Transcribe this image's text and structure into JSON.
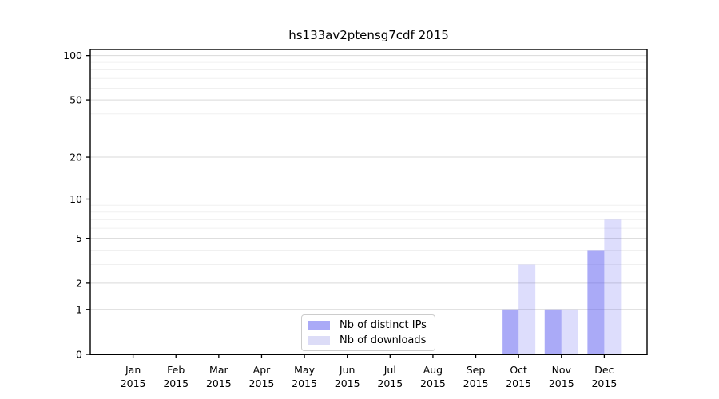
{
  "chart_data": {
    "type": "bar",
    "title": "hs133av2ptensg7cdf 2015",
    "scale": "log1p",
    "categories": [
      "Jan",
      "Feb",
      "Mar",
      "Apr",
      "May",
      "Jun",
      "Jul",
      "Aug",
      "Sep",
      "Oct",
      "Nov",
      "Dec"
    ],
    "x_tick_year": "2015",
    "series": [
      {
        "name": "Nb of distinct IPs",
        "base_color": "#5555ef",
        "opacity": 0.5,
        "solid_color": "#aaaaf7",
        "values": [
          0,
          0,
          0,
          0,
          0,
          0,
          0,
          0,
          0,
          1,
          1,
          4
        ]
      },
      {
        "name": "Nb of downloads",
        "base_color": "#5555ef",
        "opacity": 0.2,
        "solid_color": "#dcdcf7",
        "values": [
          0,
          0,
          0,
          0,
          0,
          0,
          0,
          0,
          0,
          3,
          1,
          7
        ]
      }
    ],
    "yticks": [
      0,
      1,
      2,
      5,
      10,
      20,
      50,
      100
    ],
    "minor_yticks": [
      3,
      4,
      6,
      7,
      8,
      9,
      30,
      40,
      60,
      70,
      80,
      90
    ],
    "ylim": [
      0,
      110
    ],
    "grid": true,
    "legend_position": "lower-center",
    "colors": {
      "major_grid": "#d9d9d9",
      "minor_grid": "#f0f0f0",
      "spine": "#000000",
      "legend_border": "#cccccc"
    }
  }
}
